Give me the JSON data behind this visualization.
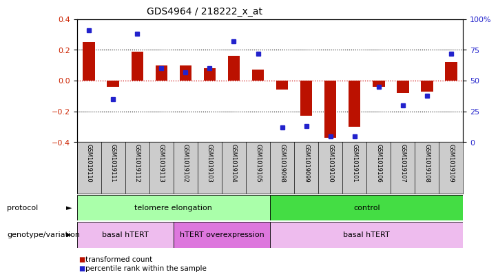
{
  "title": "GDS4964 / 218222_x_at",
  "samples": [
    "GSM1019110",
    "GSM1019111",
    "GSM1019112",
    "GSM1019113",
    "GSM1019102",
    "GSM1019103",
    "GSM1019104",
    "GSM1019105",
    "GSM1019098",
    "GSM1019099",
    "GSM1019100",
    "GSM1019101",
    "GSM1019106",
    "GSM1019107",
    "GSM1019108",
    "GSM1019109"
  ],
  "transformed_count": [
    0.25,
    -0.04,
    0.19,
    0.1,
    0.1,
    0.08,
    0.16,
    0.07,
    -0.06,
    -0.23,
    -0.37,
    -0.3,
    -0.04,
    -0.08,
    -0.07,
    0.12
  ],
  "percentile_rank": [
    91,
    35,
    88,
    60,
    57,
    60,
    82,
    72,
    12,
    13,
    5,
    5,
    45,
    30,
    38,
    72
  ],
  "ylim_left": [
    -0.4,
    0.4
  ],
  "ylim_right": [
    0,
    100
  ],
  "yticks_left": [
    -0.4,
    -0.2,
    0.0,
    0.2,
    0.4
  ],
  "yticks_right": [
    0,
    25,
    50,
    75,
    100
  ],
  "ytick_labels_right": [
    "0",
    "25",
    "50",
    "75",
    "100%"
  ],
  "bar_color": "#bb1100",
  "dot_color": "#2222cc",
  "hline_color": "#cc0000",
  "grid_color": "#000000",
  "protocol_groups": [
    {
      "label": "telomere elongation",
      "start": 0,
      "end": 7,
      "color": "#aaffaa"
    },
    {
      "label": "control",
      "start": 8,
      "end": 15,
      "color": "#44dd44"
    }
  ],
  "genotype_groups": [
    {
      "label": "basal hTERT",
      "start": 0,
      "end": 3,
      "color": "#eebcee"
    },
    {
      "label": "hTERT overexpression",
      "start": 4,
      "end": 7,
      "color": "#dd77dd"
    },
    {
      "label": "basal hTERT",
      "start": 8,
      "end": 15,
      "color": "#eebcee"
    }
  ],
  "legend_items": [
    {
      "label": "transformed count",
      "color": "#bb1100"
    },
    {
      "label": "percentile rank within the sample",
      "color": "#2222cc"
    }
  ],
  "protocol_label": "protocol",
  "genotype_label": "genotype/variation",
  "bg_color": "#ffffff",
  "plot_bg_color": "#ffffff",
  "tick_label_color_left": "#cc2200",
  "tick_label_color_right": "#2222cc",
  "cell_bg_color": "#cccccc"
}
